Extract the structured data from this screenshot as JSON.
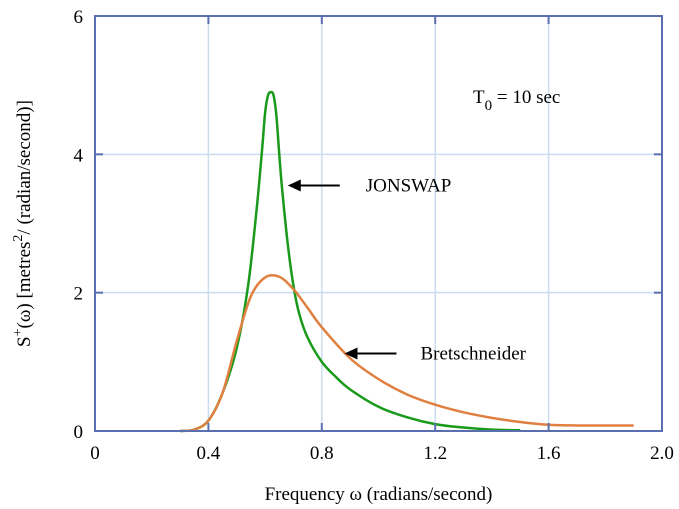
{
  "chart_data": {
    "type": "line",
    "xlabel": "Frequency ω (radians/second)",
    "ylabel_parts": {
      "s": "S",
      "plus": "+",
      "omega": "(ω) [metres",
      "sq": "2",
      "rest": "/ (radian/second)]"
    },
    "annotation": {
      "t": "T",
      "sub": "0",
      "rest": " = 10 sec"
    },
    "xlim": [
      0,
      2.0
    ],
    "ylim": [
      0,
      6
    ],
    "xticks": [
      0,
      0.4,
      0.8,
      1.2,
      1.6,
      2.0
    ],
    "xtick_labels": [
      "0",
      "0.4",
      "0.8",
      "1.2",
      "1.6",
      "2.0"
    ],
    "yticks": [
      0,
      2,
      4,
      6
    ],
    "ytick_labels": [
      "0",
      "2",
      "4",
      "6"
    ],
    "grid": true,
    "series": [
      {
        "name": "JONSWAP",
        "color": "#1a9a1a",
        "x": [
          0.3,
          0.35,
          0.4,
          0.45,
          0.5,
          0.54,
          0.57,
          0.59,
          0.6,
          0.61,
          0.62,
          0.63,
          0.64,
          0.65,
          0.66,
          0.68,
          0.7,
          0.72,
          0.75,
          0.8,
          0.85,
          0.9,
          1.0,
          1.1,
          1.2,
          1.3,
          1.4,
          1.5
        ],
        "y": [
          0,
          0.02,
          0.15,
          0.55,
          1.2,
          2.1,
          3.2,
          4.1,
          4.6,
          4.85,
          4.9,
          4.85,
          4.55,
          4.0,
          3.5,
          2.7,
          2.1,
          1.7,
          1.35,
          1.0,
          0.78,
          0.6,
          0.35,
          0.2,
          0.1,
          0.05,
          0.02,
          0.01
        ]
      },
      {
        "name": "Bretschneider",
        "color": "#e08040",
        "x": [
          0.3,
          0.35,
          0.4,
          0.45,
          0.5,
          0.55,
          0.6,
          0.65,
          0.7,
          0.75,
          0.8,
          0.9,
          1.0,
          1.1,
          1.2,
          1.3,
          1.4,
          1.5,
          1.6,
          1.7,
          1.8,
          1.9
        ],
        "y": [
          0,
          0.02,
          0.15,
          0.55,
          1.3,
          1.95,
          2.22,
          2.23,
          2.05,
          1.78,
          1.5,
          1.05,
          0.75,
          0.53,
          0.38,
          0.27,
          0.19,
          0.13,
          0.09,
          0.08,
          0.08,
          0.08
        ]
      }
    ],
    "arrow_labels": [
      {
        "series": "JONSWAP",
        "text": "JONSWAP"
      },
      {
        "series": "Bretschneider",
        "text": "Bretschneider"
      }
    ],
    "colors": {
      "axis": "#5a6fb0",
      "grid": "#c9dcf0",
      "arrow": "#000000"
    }
  }
}
